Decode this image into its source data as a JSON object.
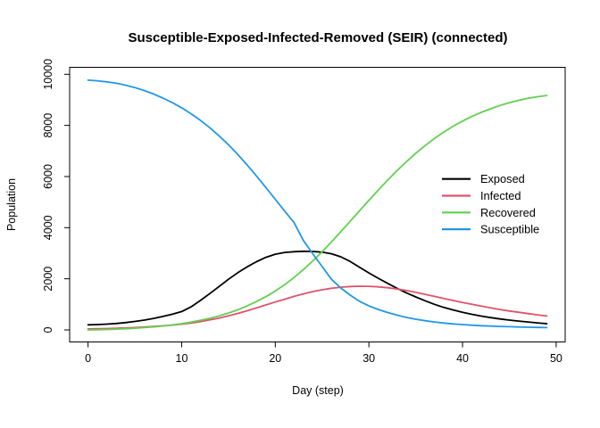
{
  "figure": {
    "title": "Susceptible-Exposed-Infected-Removed (SEIR) (connected)",
    "xlabel": "Day (step)",
    "ylabel": "Population"
  },
  "chart_data": {
    "type": "line",
    "title": "Susceptible-Exposed-Infected-Removed (SEIR) (connected)",
    "xlabel": "Day (step)",
    "ylabel": "Population",
    "x_ticks": [
      0,
      10,
      20,
      30,
      40,
      50
    ],
    "y_ticks": [
      0,
      2000,
      4000,
      6000,
      8000,
      10000
    ],
    "xlim": [
      0,
      49
    ],
    "ylim": [
      0,
      10000
    ],
    "grid": false,
    "legend_position": "right-middle",
    "x": [
      0,
      1,
      2,
      3,
      4,
      5,
      6,
      7,
      8,
      9,
      10,
      11,
      12,
      13,
      14,
      15,
      16,
      17,
      18,
      19,
      20,
      21,
      22,
      23,
      24,
      25,
      26,
      27,
      28,
      29,
      30,
      31,
      32,
      33,
      34,
      35,
      36,
      37,
      38,
      39,
      40,
      41,
      42,
      43,
      44,
      45,
      46,
      47,
      48,
      49
    ],
    "series": [
      {
        "name": "Exposed",
        "color": "#000000",
        "values": [
          200,
          210,
          225,
          250,
          285,
          330,
          385,
          450,
          525,
          615,
          720,
          900,
          1150,
          1420,
          1700,
          1980,
          2240,
          2470,
          2670,
          2840,
          2960,
          3030,
          3060,
          3075,
          3070,
          3040,
          2980,
          2860,
          2680,
          2450,
          2230,
          2020,
          1820,
          1630,
          1450,
          1290,
          1140,
          1000,
          880,
          780,
          690,
          610,
          540,
          480,
          430,
          385,
          345,
          310,
          275,
          245
        ]
      },
      {
        "name": "Infected",
        "color": "#DF536B",
        "values": [
          40,
          45,
          52,
          62,
          75,
          90,
          110,
          135,
          160,
          190,
          225,
          270,
          325,
          390,
          465,
          550,
          645,
          750,
          860,
          975,
          1090,
          1200,
          1310,
          1410,
          1500,
          1570,
          1630,
          1670,
          1700,
          1710,
          1705,
          1685,
          1650,
          1600,
          1540,
          1470,
          1390,
          1310,
          1230,
          1150,
          1070,
          1000,
          930,
          860,
          800,
          740,
          690,
          640,
          590,
          545
        ]
      },
      {
        "name": "Recovered",
        "color": "#61D04F",
        "values": [
          0,
          8,
          18,
          30,
          45,
          65,
          90,
          120,
          155,
          195,
          245,
          305,
          375,
          455,
          550,
          660,
          790,
          940,
          1110,
          1300,
          1520,
          1770,
          2050,
          2360,
          2700,
          3060,
          3440,
          3840,
          4250,
          4660,
          5070,
          5470,
          5860,
          6230,
          6580,
          6910,
          7210,
          7490,
          7740,
          7970,
          8170,
          8350,
          8510,
          8650,
          8780,
          8890,
          8980,
          9060,
          9120,
          9170
        ]
      },
      {
        "name": "Susceptible",
        "color": "#2297E6",
        "values": [
          9770,
          9745,
          9705,
          9650,
          9575,
          9480,
          9365,
          9230,
          9070,
          8890,
          8690,
          8460,
          8200,
          7910,
          7590,
          7240,
          6860,
          6450,
          6020,
          5570,
          5110,
          4650,
          4200,
          3500,
          2980,
          2480,
          1980,
          1640,
          1360,
          1120,
          940,
          800,
          680,
          580,
          490,
          420,
          360,
          310,
          270,
          235,
          210,
          185,
          165,
          150,
          135,
          125,
          115,
          105,
          98,
          90
        ]
      }
    ]
  }
}
